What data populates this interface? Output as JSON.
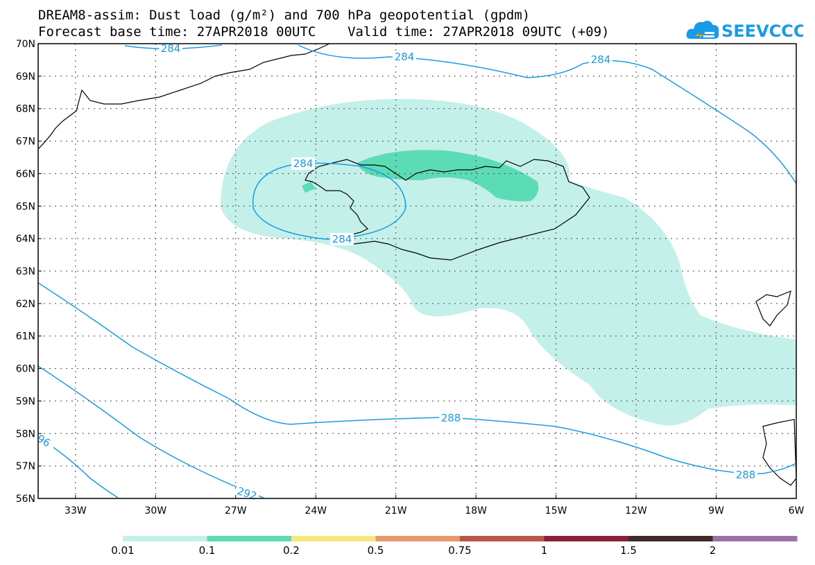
{
  "header": {
    "title_line1": "DREAM8-assim: Dust load (g/m²) and 700 hPa geopotential (gpdm)",
    "title_line2": "Forecast base time: 27APR2018 00UTC    Valid time: 27APR2018 09UTC (+09)"
  },
  "logo": {
    "text": "SEEVCCC",
    "icon": "cloud-icon",
    "color": "#1a9be6"
  },
  "map": {
    "lat_labels": [
      "70N",
      "69N",
      "68N",
      "67N",
      "66N",
      "65N",
      "64N",
      "63N",
      "62N",
      "61N",
      "60N",
      "59N",
      "58N",
      "57N",
      "56N"
    ],
    "lon_labels": [
      "33W",
      "30W",
      "27W",
      "24W",
      "21W",
      "18W",
      "15W",
      "12W",
      "9W",
      "6W"
    ],
    "contour_labels": [
      "284",
      "284",
      "284",
      "284",
      "284",
      "288",
      "288",
      "292",
      "96"
    ],
    "contour_color": "#1a9be6",
    "dust_colors": {
      "low": "#c4f0ea",
      "mid": "#5cdcb4"
    }
  },
  "colorbar": {
    "labels": [
      "0.01",
      "0.1",
      "0.2",
      "0.5",
      "0.75",
      "1",
      "1.5",
      "2"
    ],
    "colors": [
      "#c4f0ea",
      "#5cdcb4",
      "#f6e87c",
      "#e8966a",
      "#b8584c",
      "#8c1e3a",
      "#3e2a2a",
      "#9a72a8"
    ]
  }
}
